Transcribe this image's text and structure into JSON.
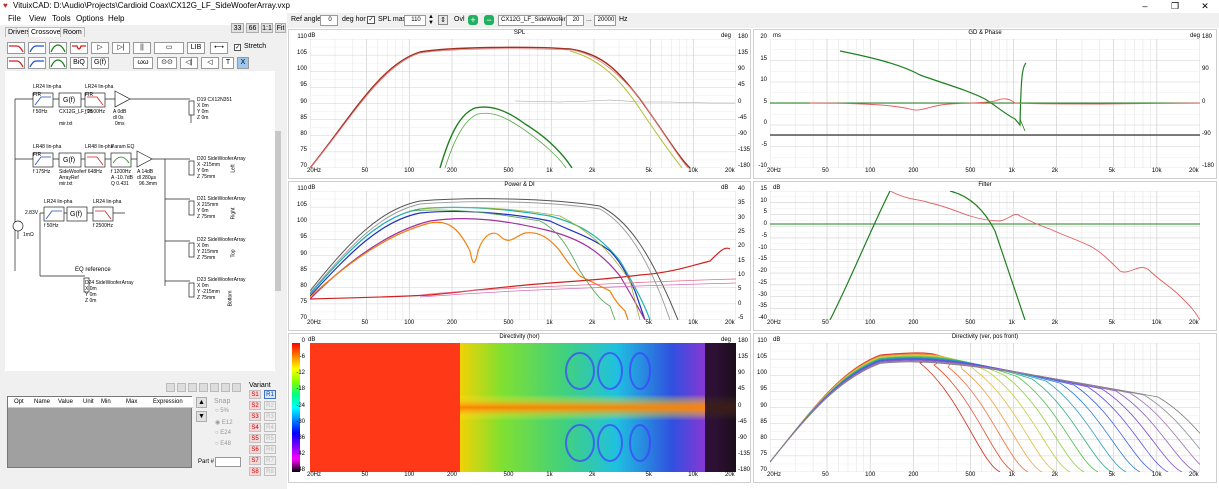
{
  "window": {
    "title": "VituixCAD: D:\\Audio\\Projects\\Cardioid Coax\\CX12G_LF_SideWooferArray.vxp",
    "controls": [
      "–",
      "❐",
      "✕"
    ]
  },
  "menu": [
    "File",
    "View",
    "Tools",
    "Options",
    "Help"
  ],
  "zoom_buttons": [
    "33",
    "66",
    "1:1",
    "Fit"
  ],
  "tabs": [
    "Drivers",
    "Crossover",
    "Room"
  ],
  "palette": {
    "row1": [
      "LP",
      "HP",
      "BP",
      "NT",
      "▷",
      "▷|",
      "||",
      "▭",
      "LIB",
      "⟷"
    ],
    "row2": [
      "LP2",
      "HP2",
      "BP2",
      "BiQ",
      "G(f)",
      "ωω",
      "⊙⊙",
      "◁|",
      "◁",
      "T",
      "X"
    ],
    "stretch_label": "Stretch"
  },
  "schematic": {
    "labels": [
      "LR24 lin-pha",
      "G(f)",
      "LR24 lin-pha",
      "FIR",
      "FIR",
      "f 50Hz",
      "CX12G_LF_9h",
      "f 2500Hz",
      "A 0dB",
      "dl 0s",
      "0ms",
      "mir.txt",
      "D19 CX12N351",
      "X 0m",
      "Y 0m",
      "Z 0m",
      "LR48 lin-pha",
      "G(f)",
      "LR48 lin-pha",
      "Param EQ",
      "FIR",
      "f 175Hz",
      "SideWoofer",
      "ArrayRef",
      "mir.txt",
      "f 648Hz",
      "f 1200Hz",
      "A -10.7dB",
      "Q 0.431",
      "A 14dB",
      "dl 280µs",
      "96.3mm",
      "D20 SideWooferArray",
      "X -215mm",
      "Y 0m",
      "Z 75mm",
      "Left",
      "D21 SideWooferArray",
      "X 215mm",
      "Y 0m",
      "Z 75mm",
      "Right",
      "D22 SideWooferArray",
      "X 0m",
      "Y 215mm",
      "Z 75mm",
      "Top",
      "D23 SideWooferArray",
      "X 0m",
      "Y -215mm",
      "Z 75mm",
      "Bottom",
      "2.83V",
      "1mΩ",
      "LR24 lin-pha",
      "G(f)",
      "LR24 lin-pha",
      "f 50Hz",
      "f 2500Hz",
      "EQ reference",
      "D24 SideWooferArray",
      "X 0m",
      "Y 0m",
      "Z 0m"
    ]
  },
  "params_table": {
    "columns": [
      "Opt",
      "Name",
      "Value",
      "Unit",
      "Min",
      "Max",
      "Expression"
    ]
  },
  "snap": {
    "label": "Snap",
    "options": [
      "5%",
      "E12",
      "E24",
      "E48"
    ],
    "part_label": "Part #"
  },
  "variant": {
    "label": "Variant",
    "buttons": [
      "R1",
      "S1",
      "S2",
      "S3",
      "S4",
      "S5",
      "S6",
      "S7",
      "S8"
    ],
    "selected": "R1"
  },
  "toolbar": {
    "ref_angle_label": "Ref angle",
    "ref_angle_value": "0",
    "deg_hor_label": "deg hor",
    "spl_max_label": "SPL max",
    "spl_max_value": "110",
    "ovl_label": "Ovl",
    "driver_value": "CX12G_LF_SideWoofer",
    "freq_from": "20",
    "freq_sep": "...",
    "freq_to": "20000",
    "hz_label": "Hz"
  },
  "freq_ticks": [
    "20Hz",
    "50",
    "100",
    "200",
    "500",
    "1k",
    "2k",
    "5k",
    "10k",
    "20k"
  ],
  "panels": {
    "spl": {
      "title": "SPL",
      "unit_left": "dB",
      "unit_right": "deg",
      "left_ticks": [
        "110",
        "105",
        "100",
        "95",
        "90",
        "85",
        "80",
        "75",
        "70"
      ],
      "right_ticks": [
        "180",
        "135",
        "90",
        "45",
        "0",
        "-45",
        "-90",
        "-135",
        "-180"
      ]
    },
    "gd": {
      "title": "GD & Phase",
      "unit_left": "ms",
      "unit_right": "deg",
      "left_ticks": [
        "20",
        "15",
        "10",
        "5",
        "0",
        "-5",
        "-10"
      ],
      "right_ticks": [
        "180",
        "90",
        "0",
        "-90",
        "-180"
      ]
    },
    "power": {
      "title": "Power & DI",
      "unit_left": "dB",
      "unit_right": "dB",
      "left_ticks": [
        "110",
        "105",
        "100",
        "95",
        "90",
        "85",
        "80",
        "75",
        "70"
      ],
      "right_ticks": [
        "40",
        "35",
        "30",
        "25",
        "20",
        "15",
        "10",
        "5",
        "0",
        "-5"
      ]
    },
    "filter": {
      "title": "Filter",
      "unit_left": "dB",
      "left_ticks": [
        "15",
        "10",
        "5",
        "0",
        "-5",
        "-10",
        "-15",
        "-20",
        "-25",
        "-30",
        "-35",
        "-40"
      ]
    },
    "directivity_hor": {
      "title": "Directivity (hor)",
      "unit_left": "dB",
      "unit_right": "deg",
      "colorbar_ticks": [
        "0",
        "-6",
        "-12",
        "-18",
        "-24",
        "-30",
        "-36",
        "-42",
        "-48"
      ],
      "right_ticks": [
        "180",
        "135",
        "90",
        "45",
        "0",
        "-45",
        "-90",
        "-135",
        "-180"
      ]
    },
    "directivity_ver": {
      "title": "Directivity (ver, pos front)",
      "unit_left": "dB",
      "left_ticks": [
        "110",
        "105",
        "100",
        "95",
        "90",
        "85",
        "80",
        "75",
        "70"
      ]
    }
  },
  "colors": {
    "accent": "#0078d7",
    "spl_main": "#a03020",
    "green": "#208020",
    "red": "#d03030"
  }
}
